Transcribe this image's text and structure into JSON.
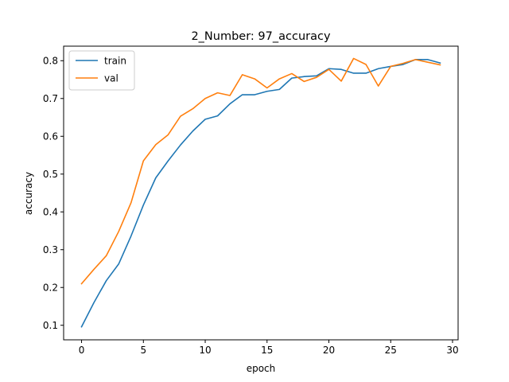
{
  "chart_data": {
    "type": "line",
    "title": "2_Number: 97_accuracy",
    "xlabel": "epoch",
    "ylabel": "accuracy",
    "xlim": [
      -1.45,
      30.45
    ],
    "ylim": [
      0.0615,
      0.8385
    ],
    "xticks": [
      0,
      5,
      10,
      15,
      20,
      25,
      30
    ],
    "yticks": [
      0.1,
      0.2,
      0.3,
      0.4,
      0.5,
      0.6,
      0.7,
      0.8
    ],
    "grid": false,
    "legend_position": "upper-left",
    "x": [
      0,
      1,
      2,
      3,
      4,
      5,
      6,
      7,
      8,
      9,
      10,
      11,
      12,
      13,
      14,
      15,
      16,
      17,
      18,
      19,
      20,
      21,
      22,
      23,
      24,
      25,
      26,
      27,
      28,
      29
    ],
    "series": [
      {
        "name": "train",
        "color": "#1f77b4",
        "values": [
          0.096,
          0.16,
          0.218,
          0.262,
          0.336,
          0.418,
          0.49,
          0.535,
          0.577,
          0.614,
          0.645,
          0.654,
          0.686,
          0.71,
          0.71,
          0.719,
          0.724,
          0.754,
          0.758,
          0.76,
          0.779,
          0.777,
          0.767,
          0.767,
          0.779,
          0.785,
          0.79,
          0.803,
          0.803,
          0.794
        ]
      },
      {
        "name": "val",
        "color": "#ff7f0e",
        "values": [
          0.21,
          0.248,
          0.284,
          0.348,
          0.424,
          0.535,
          0.578,
          0.604,
          0.653,
          0.673,
          0.7,
          0.715,
          0.708,
          0.763,
          0.752,
          0.728,
          0.752,
          0.766,
          0.745,
          0.756,
          0.777,
          0.746,
          0.806,
          0.79,
          0.733,
          0.785,
          0.793,
          0.803,
          0.796,
          0.789
        ]
      }
    ]
  }
}
